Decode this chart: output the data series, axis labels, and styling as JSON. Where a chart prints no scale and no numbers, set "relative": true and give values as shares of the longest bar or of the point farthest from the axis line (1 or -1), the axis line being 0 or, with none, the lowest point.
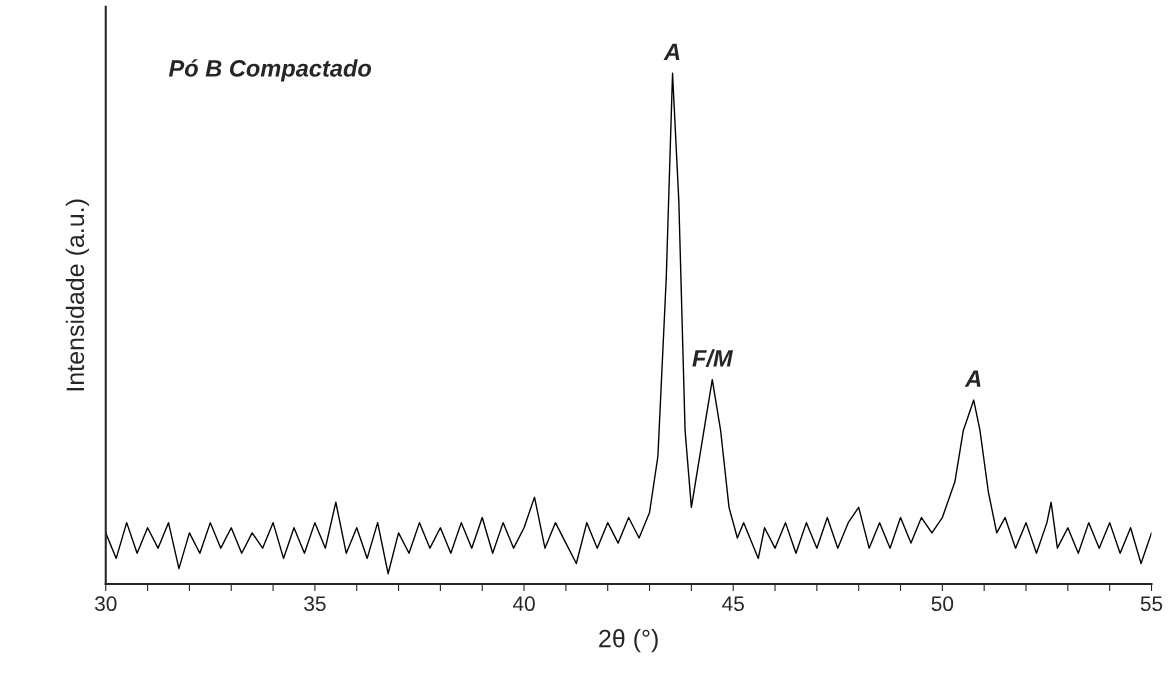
{
  "chart_data": {
    "type": "line",
    "relative": true,
    "xlabel": "2θ (°)",
    "ylabel": "Intensidade (a.u.)",
    "xlim": [
      30,
      55
    ],
    "xticks": [
      30,
      {
        "value": 31,
        "label": null
      },
      {
        "value": 32,
        "label": null
      },
      {
        "value": 33,
        "label": null
      },
      {
        "value": 34,
        "label": null
      },
      35,
      {
        "value": 36,
        "label": null
      },
      {
        "value": 37,
        "label": null
      },
      {
        "value": 38,
        "label": null
      },
      {
        "value": 39,
        "label": null
      },
      40,
      {
        "value": 41,
        "label": null
      },
      {
        "value": 42,
        "label": null
      },
      {
        "value": 43,
        "label": null
      },
      {
        "value": 44,
        "label": null
      },
      45,
      {
        "value": 46,
        "label": null
      },
      {
        "value": 47,
        "label": null
      },
      {
        "value": 48,
        "label": null
      },
      {
        "value": 49,
        "label": null
      },
      50,
      {
        "value": 51,
        "label": null
      },
      {
        "value": 52,
        "label": null
      },
      {
        "value": 53,
        "label": null
      },
      {
        "value": 54,
        "label": null
      },
      55
    ],
    "tick_labels": "x",
    "annotations": [
      "Pó B Compactado",
      {
        "text": "A",
        "x": 43.55,
        "y": 1.0
      },
      {
        "text": "F/M",
        "x": 44.5,
        "y": 0.4
      },
      {
        "text": "A",
        "x": 50.75,
        "y": 0.36
      }
    ],
    "series": [
      {
        "color": "#000000",
        "x": [
          30.0,
          30.25,
          30.5,
          30.75,
          31.0,
          31.25,
          31.5,
          31.75,
          32.0,
          32.25,
          32.5,
          32.75,
          33.0,
          33.25,
          33.5,
          33.75,
          34.0,
          34.25,
          34.5,
          34.75,
          35.0,
          35.25,
          35.5,
          35.75,
          36.0,
          36.25,
          36.5,
          36.75,
          37.0,
          37.25,
          37.5,
          37.75,
          38.0,
          38.25,
          38.5,
          38.75,
          39.0,
          39.25,
          39.5,
          39.75,
          40.0,
          40.25,
          40.5,
          40.75,
          41.0,
          41.25,
          41.5,
          41.75,
          42.0,
          42.25,
          42.5,
          42.75,
          43.0,
          43.2,
          43.4,
          43.55,
          43.7,
          43.85,
          44.0,
          44.1,
          44.3,
          44.5,
          44.7,
          44.9,
          45.1,
          45.25,
          45.5,
          45.6,
          45.75,
          46.0,
          46.25,
          46.5,
          46.75,
          47.0,
          47.25,
          47.5,
          47.75,
          48.0,
          48.25,
          48.5,
          48.75,
          49.0,
          49.25,
          49.5,
          49.75,
          50.0,
          50.3,
          50.5,
          50.75,
          50.9,
          51.1,
          51.3,
          51.5,
          51.75,
          52.0,
          52.25,
          52.5,
          52.6,
          52.75,
          53.0,
          53.25,
          53.5,
          53.75,
          54.0,
          54.25,
          54.5,
          54.75,
          55.0
        ],
        "values": [
          0.1,
          0.05,
          0.12,
          0.06,
          0.11,
          0.07,
          0.12,
          0.03,
          0.1,
          0.06,
          0.12,
          0.07,
          0.11,
          0.06,
          0.1,
          0.07,
          0.12,
          0.05,
          0.11,
          0.06,
          0.12,
          0.07,
          0.16,
          0.06,
          0.11,
          0.05,
          0.12,
          0.02,
          0.1,
          0.06,
          0.12,
          0.07,
          0.11,
          0.06,
          0.12,
          0.07,
          0.13,
          0.06,
          0.12,
          0.07,
          0.11,
          0.17,
          0.07,
          0.12,
          0.08,
          0.04,
          0.12,
          0.07,
          0.12,
          0.08,
          0.13,
          0.09,
          0.14,
          0.25,
          0.6,
          1.0,
          0.75,
          0.3,
          0.15,
          0.2,
          0.3,
          0.4,
          0.3,
          0.15,
          0.09,
          0.12,
          0.07,
          0.05,
          0.11,
          0.07,
          0.12,
          0.06,
          0.12,
          0.07,
          0.13,
          0.07,
          0.12,
          0.15,
          0.07,
          0.12,
          0.07,
          0.13,
          0.08,
          0.13,
          0.1,
          0.13,
          0.2,
          0.3,
          0.36,
          0.3,
          0.18,
          0.1,
          0.13,
          0.07,
          0.12,
          0.06,
          0.12,
          0.16,
          0.07,
          0.11,
          0.06,
          0.12,
          0.07,
          0.12,
          0.06,
          0.11,
          0.04,
          0.1
        ]
      }
    ]
  }
}
